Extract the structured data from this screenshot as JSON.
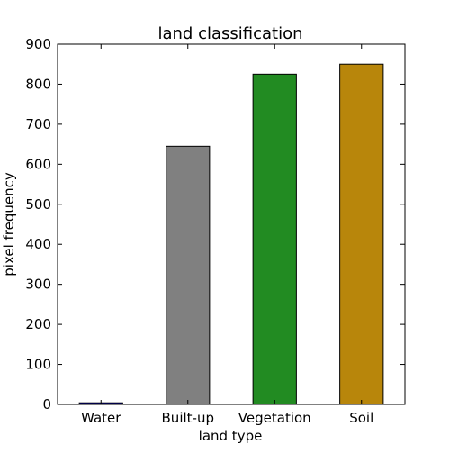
{
  "chart_data": {
    "type": "bar",
    "title": "land classification",
    "xlabel": "land type",
    "ylabel": "pixel frequency",
    "categories": [
      "Water",
      "Built-up",
      "Vegetation",
      "Soil"
    ],
    "values": [
      4,
      645,
      825,
      850
    ],
    "colors": [
      "#0000ff",
      "#808080",
      "#228b22",
      "#b8860b"
    ],
    "ylim": [
      0,
      900
    ],
    "yticks": [
      0,
      100,
      200,
      300,
      400,
      500,
      600,
      700,
      800,
      900
    ],
    "grid": false,
    "legend": "none"
  }
}
